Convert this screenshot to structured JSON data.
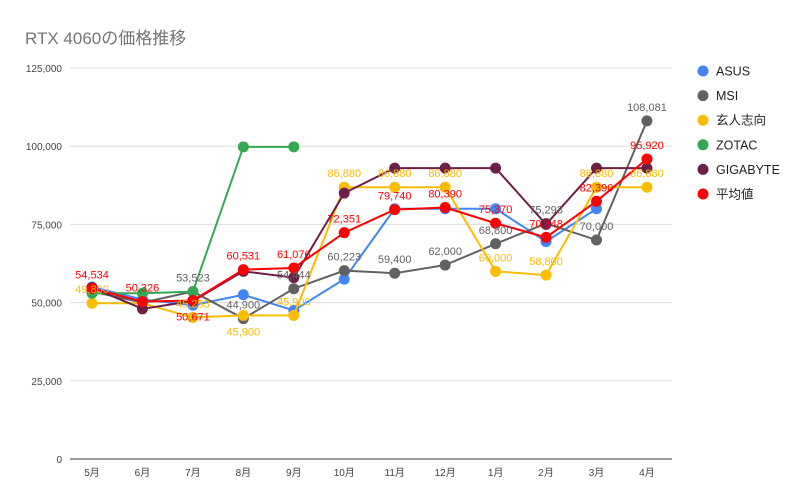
{
  "chart_data": {
    "type": "line",
    "title": "RTX 4060の価格推移",
    "categories": [
      "5月",
      "6月",
      "7月",
      "8月",
      "9月",
      "10月",
      "11月",
      "12月",
      "1月",
      "2月",
      "3月",
      "4月"
    ],
    "ylim": [
      0,
      125000
    ],
    "yticks": [
      0,
      25000,
      50000,
      75000,
      100000,
      125000
    ],
    "ytick_labels": [
      "0",
      "25,000",
      "50,000",
      "75,000",
      "100,000",
      "125,000"
    ],
    "grid": true,
    "legend": "right",
    "series": [
      {
        "name": "ASUS",
        "color": "#4285f4",
        "values": [
          55000,
          51000,
          49200,
          52500,
          47500,
          57500,
          80000,
          80000,
          80000,
          69500,
          80000,
          null
        ],
        "labels": [
          null,
          null,
          null,
          null,
          null,
          null,
          null,
          null,
          null,
          null,
          null,
          null
        ]
      },
      {
        "name": "MSI",
        "color": "#616161",
        "values": [
          53523,
          50000,
          53523,
          44900,
          54444,
          60223,
          59400,
          62000,
          68800,
          75293,
          70000,
          108081
        ],
        "labels": [
          null,
          null,
          "53,523",
          "44,900",
          "54,444",
          "60,223",
          "59,400",
          "62,000",
          "68,800",
          "75,293",
          "70,000",
          "108,081"
        ]
      },
      {
        "name": "玄人志向",
        "color": "#fbbc04",
        "values": [
          49800,
          49800,
          45253,
          45900,
          45900,
          86880,
          86880,
          86880,
          60000,
          58800,
          86880,
          86880
        ],
        "labels": [
          "49,800",
          null,
          "45,253",
          "45,900",
          "45,900",
          "86,880",
          "86,880",
          "86,880",
          "60,000",
          "58,800",
          "86,880",
          "86,880"
        ]
      },
      {
        "name": "ZOTAC",
        "color": "#34a853",
        "values": [
          53000,
          53000,
          53500,
          99800,
          99800,
          null,
          null,
          null,
          null,
          null,
          null,
          null
        ],
        "labels": [
          null,
          null,
          null,
          null,
          null,
          null,
          null,
          null,
          null,
          null,
          null,
          null
        ]
      },
      {
        "name": "GIGABYTE",
        "color": "#6d1f47",
        "values": [
          54800,
          48000,
          50500,
          60000,
          58000,
          85000,
          93000,
          93000,
          93000,
          75000,
          93000,
          93000
        ],
        "labels": [
          null,
          null,
          null,
          null,
          null,
          null,
          null,
          null,
          null,
          null,
          null,
          null
        ]
      },
      {
        "name": "平均値",
        "color": "#ff0000",
        "values": [
          54534,
          50326,
          50671,
          60531,
          61076,
          72351,
          79740,
          80390,
          75370,
          70848,
          82390,
          95920
        ],
        "labels": [
          "54,534",
          "50,326",
          "50,671",
          "60,531",
          "61,076",
          "72,351",
          "79,740",
          "80,390",
          "75,370",
          "70,848",
          "82,390",
          "95,920"
        ]
      }
    ]
  }
}
